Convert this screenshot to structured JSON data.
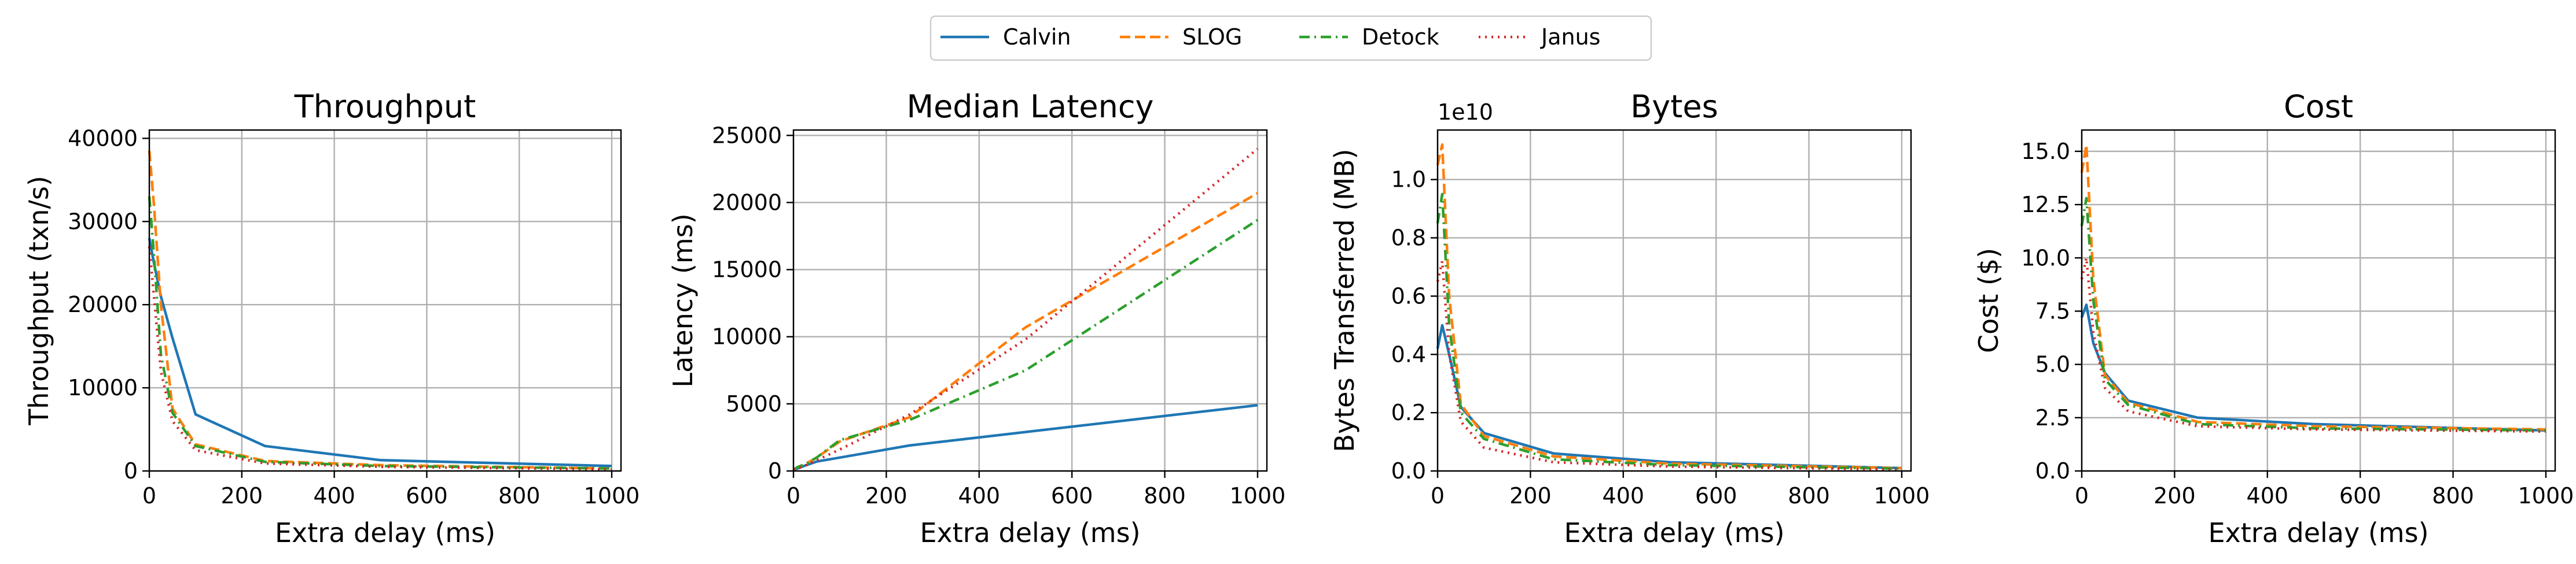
{
  "legend": {
    "placement": "top-center",
    "entries": [
      {
        "name": "Calvin",
        "color": "#1f77b4",
        "style": "solid"
      },
      {
        "name": "SLOG",
        "color": "#ff7f0e",
        "style": "dashed"
      },
      {
        "name": "Detock",
        "color": "#2ca02c",
        "style": "dashdot"
      },
      {
        "name": "Janus",
        "color": "#d62728",
        "style": "dotted"
      }
    ]
  },
  "chart_data": [
    {
      "type": "line",
      "title": "Throughput",
      "xlabel": "Extra delay (ms)",
      "ylabel": "Throughput (txn/s)",
      "xlim": [
        0,
        1020
      ],
      "ylim": [
        0,
        41000
      ],
      "xticks": [
        0,
        200,
        400,
        600,
        800,
        1000
      ],
      "xtick_labels": [
        "0",
        "200",
        "400",
        "600",
        "800",
        "1000"
      ],
      "yticks": [
        0,
        10000,
        20000,
        30000,
        40000
      ],
      "ytick_labels": [
        "0",
        "10000",
        "20000",
        "30000",
        "40000"
      ],
      "grid": true,
      "x": [
        0,
        10,
        25,
        50,
        100,
        250,
        500,
        1000
      ],
      "series": [
        {
          "name": "Calvin",
          "values": [
            28000,
            25000,
            21000,
            16000,
            6800,
            3000,
            1300,
            600
          ]
        },
        {
          "name": "SLOG",
          "values": [
            38500,
            32000,
            20000,
            7500,
            3200,
            1200,
            700,
            300
          ]
        },
        {
          "name": "Detock",
          "values": [
            33000,
            26000,
            14000,
            7000,
            3000,
            1100,
            600,
            300
          ]
        },
        {
          "name": "Janus",
          "values": [
            27000,
            21000,
            12000,
            6000,
            2500,
            900,
            500,
            200
          ]
        }
      ]
    },
    {
      "type": "line",
      "title": "Median Latency",
      "xlabel": "Extra delay (ms)",
      "ylabel": "Latency (ms)",
      "xlim": [
        0,
        1020
      ],
      "ylim": [
        0,
        25400
      ],
      "xticks": [
        0,
        200,
        400,
        600,
        800,
        1000
      ],
      "xtick_labels": [
        "0",
        "200",
        "400",
        "600",
        "800",
        "1000"
      ],
      "yticks": [
        0,
        5000,
        10000,
        15000,
        20000,
        25000
      ],
      "ytick_labels": [
        "0",
        "5000",
        "10000",
        "15000",
        "20000",
        "25000"
      ],
      "grid": true,
      "x": [
        0,
        10,
        25,
        50,
        100,
        250,
        500,
        1000
      ],
      "series": [
        {
          "name": "Calvin",
          "values": [
            100,
            200,
            400,
            700,
            1000,
            1900,
            2900,
            4900
          ]
        },
        {
          "name": "SLOG",
          "values": [
            100,
            300,
            500,
            1000,
            2200,
            4000,
            10700,
            20700
          ]
        },
        {
          "name": "Detock",
          "values": [
            100,
            300,
            500,
            1000,
            2300,
            3800,
            7500,
            18700
          ]
        },
        {
          "name": "Janus",
          "values": [
            100,
            200,
            400,
            800,
            1600,
            4200,
            9800,
            24000
          ]
        }
      ]
    },
    {
      "type": "line",
      "title": "Bytes",
      "xlabel": "Extra delay (ms)",
      "ylabel": "Bytes Transferred (MB)",
      "offset_label": "1e10",
      "xlim": [
        0,
        1020
      ],
      "ylim": [
        0,
        1.17
      ],
      "xticks": [
        0,
        200,
        400,
        600,
        800,
        1000
      ],
      "xtick_labels": [
        "0",
        "200",
        "400",
        "600",
        "800",
        "1000"
      ],
      "yticks": [
        0,
        0.2,
        0.4,
        0.6,
        0.8,
        1.0
      ],
      "ytick_labels": [
        "0.0",
        "0.2",
        "0.4",
        "0.6",
        "0.8",
        "1.0"
      ],
      "grid": true,
      "x": [
        0,
        10,
        25,
        50,
        100,
        250,
        500,
        1000
      ],
      "series": [
        {
          "name": "Calvin",
          "values": [
            0.42,
            0.5,
            0.4,
            0.22,
            0.13,
            0.06,
            0.03,
            0.01
          ]
        },
        {
          "name": "SLOG",
          "values": [
            1.05,
            1.12,
            0.6,
            0.23,
            0.12,
            0.05,
            0.025,
            0.01
          ]
        },
        {
          "name": "Detock",
          "values": [
            0.85,
            0.95,
            0.5,
            0.2,
            0.11,
            0.04,
            0.02,
            0.008
          ]
        },
        {
          "name": "Janus",
          "values": [
            0.65,
            0.72,
            0.4,
            0.17,
            0.08,
            0.03,
            0.015,
            0.005
          ]
        }
      ]
    },
    {
      "type": "line",
      "title": "Cost",
      "xlabel": "Extra delay (ms)",
      "ylabel": "Cost ($)",
      "xlim": [
        0,
        1020
      ],
      "ylim": [
        0,
        16
      ],
      "xticks": [
        0,
        200,
        400,
        600,
        800,
        1000
      ],
      "xtick_labels": [
        "0",
        "200",
        "400",
        "600",
        "800",
        "1000"
      ],
      "yticks": [
        0,
        2.5,
        5.0,
        7.5,
        10.0,
        12.5,
        15.0
      ],
      "ytick_labels": [
        "0.0",
        "2.5",
        "5.0",
        "7.5",
        "10.0",
        "12.5",
        "15.0"
      ],
      "grid": true,
      "x": [
        0,
        10,
        25,
        50,
        100,
        250,
        500,
        1000
      ],
      "series": [
        {
          "name": "Calvin",
          "values": [
            7.2,
            7.8,
            6.0,
            4.6,
            3.3,
            2.5,
            2.2,
            1.9
          ]
        },
        {
          "name": "SLOG",
          "values": [
            14.0,
            15.3,
            9.0,
            4.5,
            3.2,
            2.3,
            2.1,
            1.95
          ]
        },
        {
          "name": "Detock",
          "values": [
            11.5,
            12.8,
            8.0,
            4.3,
            3.1,
            2.2,
            2.0,
            1.9
          ]
        },
        {
          "name": "Janus",
          "values": [
            9.0,
            10.0,
            6.5,
            3.9,
            2.8,
            2.1,
            1.95,
            1.85
          ]
        }
      ]
    }
  ]
}
